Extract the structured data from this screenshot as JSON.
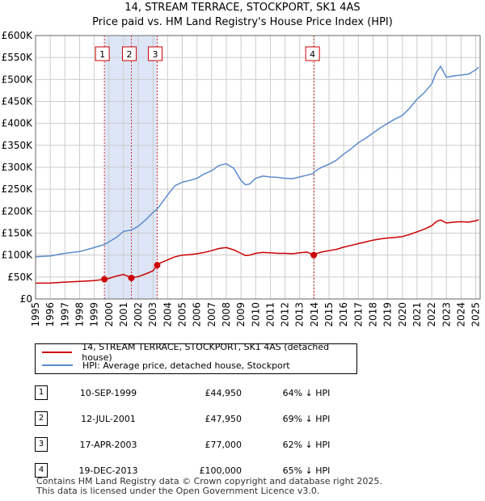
{
  "chart_data": {
    "type": "line",
    "title": "14, STREAM TERRACE, STOCKPORT, SK1 4AS",
    "subtitle": "Price paid vs. HM Land Registry's House Price Index (HPI)",
    "xlim": [
      1995,
      2025.3
    ],
    "ylim": [
      0,
      600000
    ],
    "y_ticks": [
      0,
      50000,
      100000,
      150000,
      200000,
      250000,
      300000,
      350000,
      400000,
      450000,
      500000,
      550000,
      600000
    ],
    "y_tick_labels": [
      "£0",
      "£50K",
      "£100K",
      "£150K",
      "£200K",
      "£250K",
      "£300K",
      "£350K",
      "£400K",
      "£450K",
      "£500K",
      "£550K",
      "£600K"
    ],
    "x_ticks": [
      1995,
      1996,
      1997,
      1998,
      1999,
      2000,
      2001,
      2002,
      2003,
      2004,
      2005,
      2006,
      2007,
      2008,
      2009,
      2010,
      2011,
      2012,
      2013,
      2014,
      2015,
      2016,
      2017,
      2018,
      2019,
      2020,
      2021,
      2022,
      2023,
      2024,
      2025
    ],
    "x_tick_labels": [
      "1995",
      "1996",
      "1997",
      "1998",
      "1999",
      "2000",
      "2001",
      "2002",
      "2003",
      "2004",
      "2005",
      "2006",
      "2007",
      "2008",
      "2009",
      "2010",
      "2011",
      "2012",
      "2013",
      "2014",
      "2015",
      "2016",
      "2017",
      "2018",
      "2019",
      "2020",
      "2021",
      "2022",
      "2023",
      "2024",
      "2025"
    ],
    "grid": true,
    "legend_position": "below",
    "series": [
      {
        "name": "14, STREAM TERRACE, STOCKPORT, SK1 4AS (detached house)",
        "color": "#cc0000",
        "x": [
          1995.0,
          1996.0,
          1997.0,
          1998.0,
          1999.0,
          1999.69,
          2000.0,
          2000.5,
          2001.0,
          2001.53,
          2002.0,
          2002.5,
          2003.0,
          2003.29,
          2003.5,
          2004.0,
          2004.5,
          2005.0,
          2005.5,
          2006.0,
          2006.5,
          2007.0,
          2007.5,
          2008.0,
          2008.5,
          2009.0,
          2009.3,
          2009.6,
          2010.0,
          2010.5,
          2011.0,
          2011.5,
          2012.0,
          2012.5,
          2013.0,
          2013.5,
          2013.96,
          2014.0,
          2014.5,
          2015.0,
          2015.5,
          2016.0,
          2016.5,
          2017.0,
          2017.5,
          2018.0,
          2018.5,
          2019.0,
          2019.5,
          2020.0,
          2020.5,
          2021.0,
          2021.5,
          2022.0,
          2022.3,
          2022.6,
          2023.0,
          2023.5,
          2024.0,
          2024.5,
          2025.0,
          2025.2
        ],
        "values": [
          36000,
          36500,
          38500,
          40000,
          42000,
          44950,
          47000,
          52000,
          56000,
          47950,
          51000,
          57000,
          64000,
          77000,
          82000,
          89000,
          96000,
          100000,
          101000,
          103000,
          106000,
          110000,
          115000,
          117000,
          112000,
          104000,
          99000,
          100000,
          104000,
          106000,
          105000,
          104000,
          104000,
          103000,
          105000,
          107000,
          100000,
          102000,
          107000,
          110000,
          113000,
          118000,
          122000,
          126000,
          130000,
          134000,
          137000,
          139000,
          140000,
          142000,
          147000,
          153000,
          159000,
          167000,
          176000,
          180000,
          173000,
          175000,
          176000,
          175000,
          178000,
          181000
        ]
      },
      {
        "name": "HPI: Average price, detached house, Stockport",
        "color": "#5b8ccc",
        "x": [
          1995.0,
          1996.0,
          1997.0,
          1998.0,
          1999.0,
          1999.69,
          2000.0,
          2000.5,
          2001.0,
          2001.53,
          2002.0,
          2002.5,
          2003.0,
          2003.29,
          2003.5,
          2004.0,
          2004.5,
          2005.0,
          2005.5,
          2006.0,
          2006.5,
          2007.0,
          2007.5,
          2008.0,
          2008.5,
          2009.0,
          2009.3,
          2009.6,
          2010.0,
          2010.5,
          2011.0,
          2011.5,
          2012.0,
          2012.5,
          2013.0,
          2013.5,
          2013.96,
          2014.0,
          2014.5,
          2015.0,
          2015.5,
          2016.0,
          2016.5,
          2017.0,
          2017.5,
          2018.0,
          2018.5,
          2019.0,
          2019.5,
          2020.0,
          2020.5,
          2021.0,
          2021.5,
          2022.0,
          2022.3,
          2022.6,
          2023.0,
          2023.5,
          2024.0,
          2024.5,
          2025.0,
          2025.2
        ],
        "values": [
          96000,
          98000,
          104000,
          108000,
          117000,
          124000,
          130000,
          140000,
          154000,
          157000,
          166000,
          180000,
          197000,
          205000,
          214000,
          237000,
          258000,
          266000,
          270000,
          275000,
          285000,
          292000,
          304000,
          308000,
          298000,
          270000,
          260000,
          262000,
          275000,
          280000,
          278000,
          277000,
          275000,
          274000,
          278000,
          282000,
          286000,
          290000,
          300000,
          307000,
          316000,
          330000,
          342000,
          356000,
          366000,
          378000,
          390000,
          400000,
          410000,
          418000,
          435000,
          455000,
          470000,
          490000,
          515000,
          530000,
          505000,
          508000,
          510000,
          512000,
          522000,
          528000
        ]
      }
    ],
    "transactions": [
      {
        "label": "1",
        "date": "10-SEP-1999",
        "x": 1999.69,
        "price": 44950,
        "price_text": "£44,950",
        "hpi_text": "64% ↓ HPI"
      },
      {
        "label": "2",
        "date": "12-JUL-2001",
        "x": 2001.53,
        "price": 47950,
        "price_text": "£47,950",
        "hpi_text": "69% ↓ HPI"
      },
      {
        "label": "3",
        "date": "17-APR-2003",
        "x": 2003.29,
        "price": 77000,
        "price_text": "£77,000",
        "hpi_text": "62% ↓ HPI"
      },
      {
        "label": "4",
        "date": "19-DEC-2013",
        "x": 2013.96,
        "price": 100000,
        "price_text": "£100,000",
        "hpi_text": "65% ↓ HPI"
      }
    ],
    "shaded_ranges": [
      [
        1999.69,
        2001.53
      ],
      [
        2001.53,
        2003.29
      ]
    ],
    "colors": {
      "grid": "#cccccc",
      "shade": "#dde6f7",
      "marker_line": "#cc0000",
      "frame": "#666666"
    }
  },
  "footer": {
    "line1": "Contains HM Land Registry data © Crown copyright and database right 2025.",
    "line2": "This data is licensed under the Open Government Licence v3.0."
  }
}
